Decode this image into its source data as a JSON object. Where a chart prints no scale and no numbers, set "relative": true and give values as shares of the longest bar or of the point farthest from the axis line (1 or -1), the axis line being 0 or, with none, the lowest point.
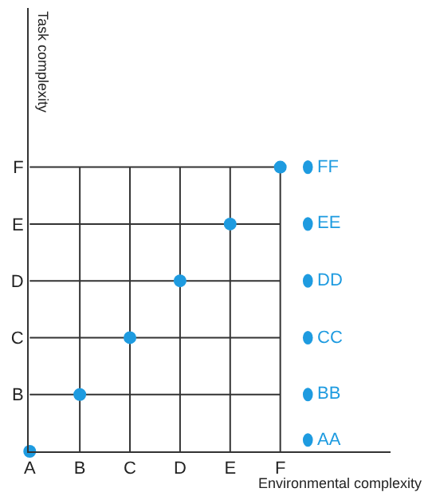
{
  "chart_data": {
    "type": "scatter",
    "xlabel": "Environmental complexity",
    "ylabel": "Task complexity",
    "categories": [
      "A",
      "B",
      "C",
      "D",
      "E",
      "F"
    ],
    "series": [
      {
        "color": "#1e9be0",
        "values": [
          0,
          0.2,
          0.4,
          0.6,
          0.8,
          1
        ]
      }
    ],
    "relative": true,
    "y_categories": [
      "F",
      "E",
      "D",
      "C",
      "B",
      null
    ],
    "annotations": [
      "FF",
      "EE",
      "DD",
      "CC",
      "BB",
      "AA"
    ],
    "grid": true,
    "marker": "circle"
  }
}
